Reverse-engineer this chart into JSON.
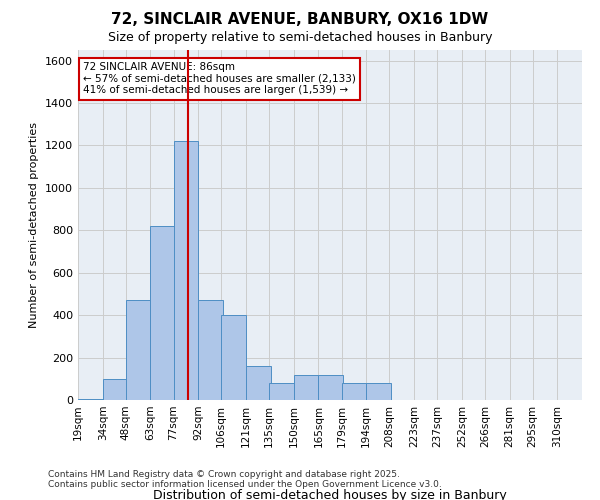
{
  "title_line1": "72, SINCLAIR AVENUE, BANBURY, OX16 1DW",
  "title_line2": "Size of property relative to semi-detached houses in Banbury",
  "xlabel": "Distribution of semi-detached houses by size in Banbury",
  "ylabel": "Number of semi-detached properties",
  "annotation_title": "72 SINCLAIR AVENUE: 86sqm",
  "annotation_line2": "← 57% of semi-detached houses are smaller (2,133)",
  "annotation_line3": "41% of semi-detached houses are larger (1,539) →",
  "property_size": 86,
  "categories": [
    "19sqm",
    "34sqm",
    "48sqm",
    "63sqm",
    "77sqm",
    "92sqm",
    "106sqm",
    "121sqm",
    "135sqm",
    "150sqm",
    "165sqm",
    "179sqm",
    "194sqm",
    "208sqm",
    "223sqm",
    "237sqm",
    "252sqm",
    "266sqm",
    "281sqm",
    "295sqm",
    "310sqm"
  ],
  "bin_edges": [
    19,
    34,
    48,
    63,
    77,
    92,
    106,
    121,
    135,
    150,
    165,
    179,
    194,
    208,
    223,
    237,
    252,
    266,
    281,
    295,
    310,
    325
  ],
  "bar_heights": [
    5,
    100,
    470,
    820,
    1220,
    470,
    400,
    160,
    80,
    120,
    120,
    80,
    80,
    0,
    0,
    0,
    0,
    0,
    0,
    0,
    0
  ],
  "bar_color": "#aec6e8",
  "bar_edge_color": "#4e8ec4",
  "vline_x": 86,
  "vline_color": "#cc0000",
  "annotation_box_color": "#cc0000",
  "ylim": [
    0,
    1650
  ],
  "yticks": [
    0,
    200,
    400,
    600,
    800,
    1000,
    1200,
    1400,
    1600
  ],
  "grid_color": "#cccccc",
  "background_color": "#e8eef5",
  "footer_line1": "Contains HM Land Registry data © Crown copyright and database right 2025.",
  "footer_line2": "Contains public sector information licensed under the Open Government Licence v3.0."
}
